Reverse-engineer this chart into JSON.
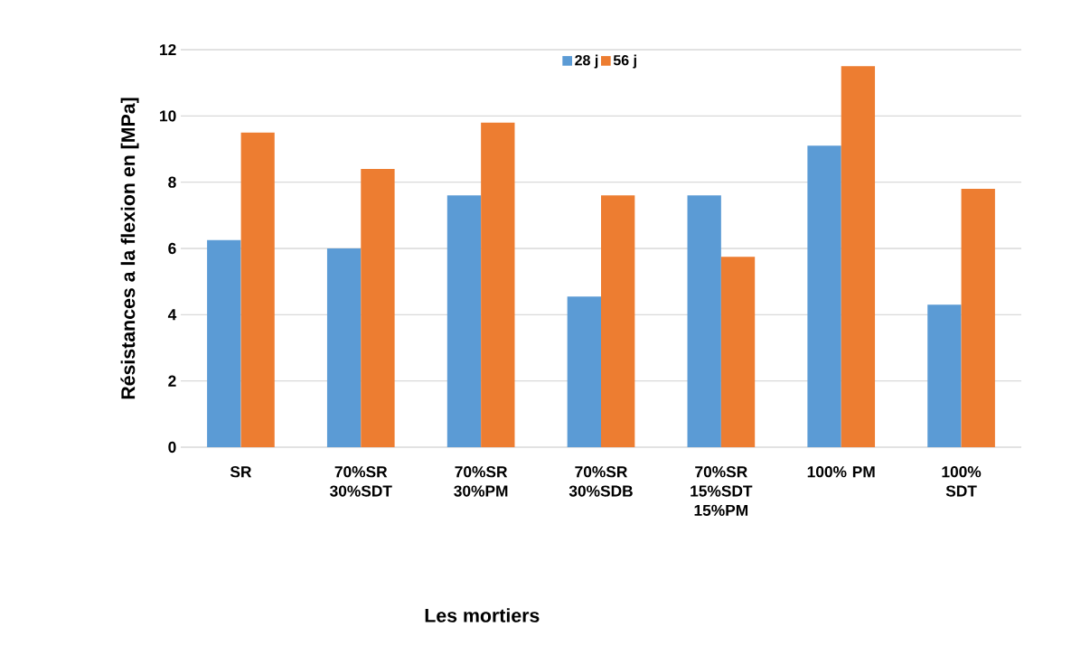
{
  "chart_data": {
    "type": "bar",
    "ylabel": "Résistances a la flexion en [MPa]",
    "xlabel": "Les mortiers",
    "categories": [
      "SR",
      "70%SR 30%SDT",
      "70%SR 30%PM",
      "70%SR 30%SDB",
      "70%SR 15%SDT 15%PM",
      "100% PM",
      "100% SDT"
    ],
    "series": [
      {
        "name": "28 j",
        "color": "#5b9bd5",
        "values": [
          6.25,
          6.0,
          7.6,
          4.55,
          7.6,
          9.1,
          4.3
        ]
      },
      {
        "name": "56 j",
        "color": "#ed7d31",
        "values": [
          9.5,
          8.4,
          9.8,
          7.6,
          5.75,
          11.5,
          7.8
        ]
      }
    ],
    "ylim": [
      0,
      12
    ],
    "yticks": [
      0,
      2,
      4,
      6,
      8,
      10,
      12
    ],
    "grid": "y",
    "legend": "top"
  }
}
